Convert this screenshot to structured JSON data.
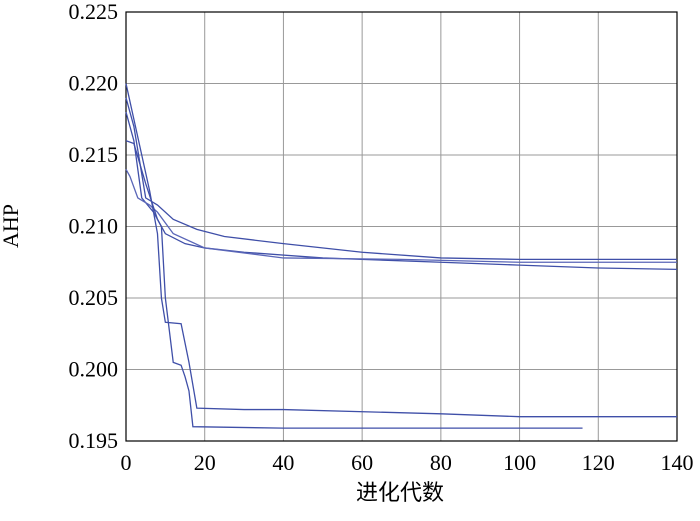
{
  "chart_data": {
    "type": "line",
    "x_label": "进化代数",
    "y_label": "AHP",
    "xlim": [
      0,
      140
    ],
    "xticks": [
      0,
      20,
      40,
      60,
      80,
      100,
      120,
      140
    ],
    "ylim": [
      0.195,
      0.225
    ],
    "yticks": [
      {
        "value": 0.195,
        "label": "0.195"
      },
      {
        "value": 0.2,
        "label": "0.200"
      },
      {
        "value": 0.205,
        "label": "0.205"
      },
      {
        "value": 0.21,
        "label": "0.210"
      },
      {
        "value": 0.215,
        "label": "0.215"
      },
      {
        "value": 0.22,
        "label": "0.220"
      },
      {
        "value": 0.225,
        "label": "0.225"
      }
    ],
    "grid": true,
    "series": [
      {
        "color": "#3f4fa8",
        "x": [
          0,
          2,
          5,
          8,
          12,
          18,
          25,
          40,
          60,
          80,
          100,
          120,
          140
        ],
        "values": [
          0.219,
          0.217,
          0.212,
          0.2115,
          0.2105,
          0.2098,
          0.2093,
          0.2088,
          0.2082,
          0.2078,
          0.2077,
          0.2077,
          0.2077
        ]
      },
      {
        "color": "#3f4fa8",
        "x": [
          0,
          2,
          4,
          7,
          10,
          15,
          20,
          30,
          50,
          80,
          100,
          120,
          140
        ],
        "values": [
          0.218,
          0.216,
          0.212,
          0.211,
          0.2095,
          0.2088,
          0.2085,
          0.2082,
          0.2078,
          0.2075,
          0.2073,
          0.2071,
          0.207
        ]
      },
      {
        "color": "#5a66b8",
        "x": [
          0,
          1,
          3,
          6,
          8,
          12,
          20,
          40,
          70,
          100,
          140
        ],
        "values": [
          0.214,
          0.2135,
          0.212,
          0.2115,
          0.211,
          0.2095,
          0.2085,
          0.2078,
          0.2077,
          0.2075,
          0.2075
        ]
      },
      {
        "color": "#3f4fa8",
        "x": [
          0,
          2,
          4,
          6,
          8,
          9,
          10,
          14,
          16,
          18,
          30,
          40,
          80,
          100,
          140
        ],
        "values": [
          0.22,
          0.2175,
          0.215,
          0.2125,
          0.2095,
          0.205,
          0.2033,
          0.2032,
          0.2005,
          0.1973,
          0.1972,
          0.1972,
          0.1969,
          0.1967,
          0.1967
        ]
      },
      {
        "color": "#3f4fa8",
        "x": [
          0,
          2,
          5,
          8,
          9,
          10,
          12,
          14,
          15,
          16,
          17,
          40,
          80,
          116
        ],
        "values": [
          0.216,
          0.2158,
          0.213,
          0.2105,
          0.21,
          0.205,
          0.2005,
          0.2003,
          0.1995,
          0.1985,
          0.196,
          0.1959,
          0.1959,
          0.1959
        ]
      }
    ]
  }
}
